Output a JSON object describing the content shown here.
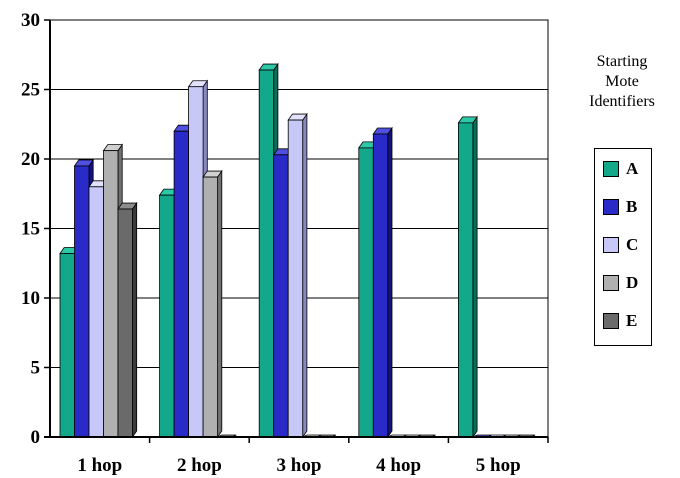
{
  "chart_data": {
    "type": "bar",
    "categories": [
      "1 hop",
      "2 hop",
      "3 hop",
      "4 hop",
      "5 hop"
    ],
    "series": [
      {
        "name": "A",
        "values": [
          13.2,
          17.4,
          26.4,
          20.8,
          22.6
        ]
      },
      {
        "name": "B",
        "values": [
          19.5,
          22.0,
          20.3,
          21.8,
          0
        ]
      },
      {
        "name": "C",
        "values": [
          18.0,
          25.2,
          22.8,
          0,
          0
        ]
      },
      {
        "name": "D",
        "values": [
          20.6,
          18.7,
          0,
          0,
          0
        ]
      },
      {
        "name": "E",
        "values": [
          16.4,
          0,
          0,
          0,
          0
        ]
      }
    ],
    "yticks": [
      "0",
      "5",
      "10",
      "15",
      "20",
      "25",
      "30"
    ],
    "ylim": [
      0,
      30
    ],
    "grid": true,
    "legend_position": "right",
    "legend_title": [
      "Starting",
      "Mote",
      "Identifiers"
    ],
    "colors": {
      "A": {
        "front": "#13a889",
        "side": "#0b6e58",
        "top": "#2cc9a6"
      },
      "B": {
        "front": "#2a2ac8",
        "side": "#13137a",
        "top": "#5050e0"
      },
      "C": {
        "front": "#c8c8f8",
        "side": "#8888c0",
        "top": "#e2e2ff"
      },
      "D": {
        "front": "#b0b0b0",
        "side": "#707070",
        "top": "#d0d0d0"
      },
      "E": {
        "front": "#6a6a6a",
        "side": "#3a3a3a",
        "top": "#8c8c8c"
      }
    }
  }
}
